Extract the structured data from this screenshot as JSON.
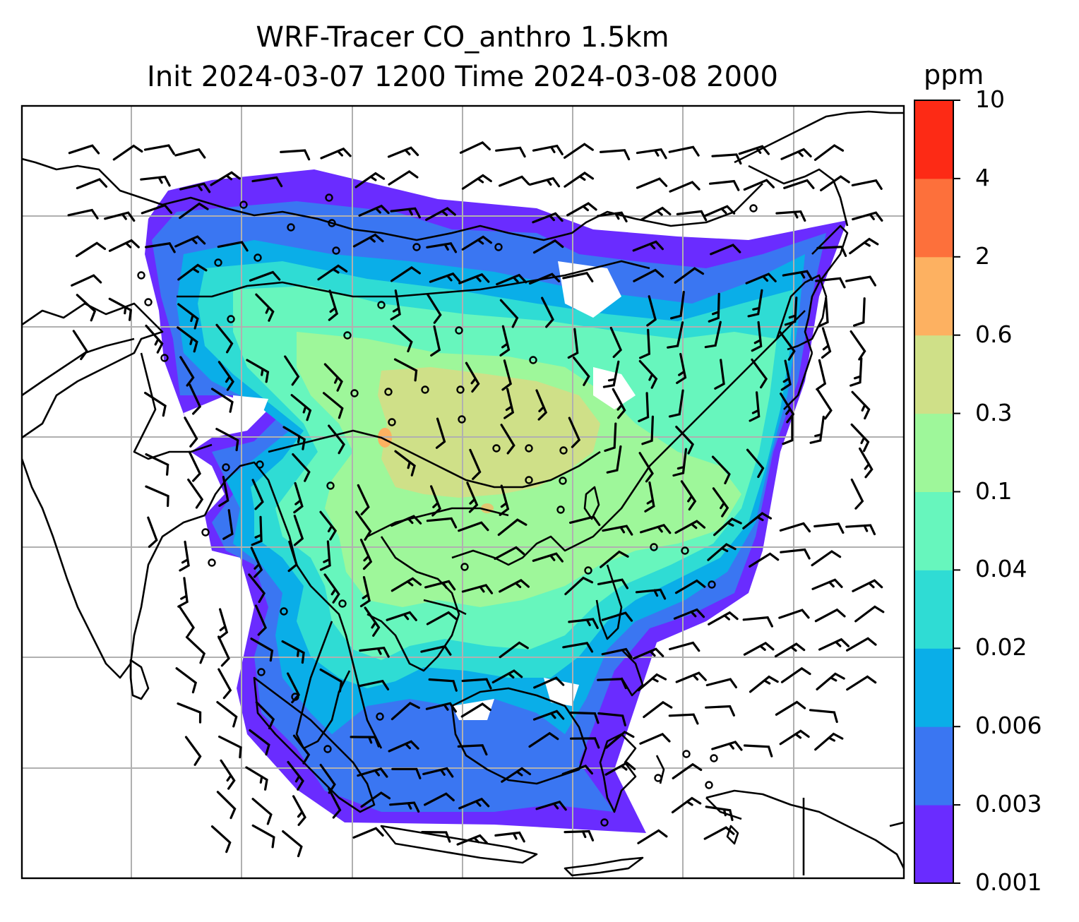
{
  "title": {
    "line1": "WRF-Tracer CO_anthro 1.5km",
    "line2": "Init 2024-03-07 1200 Time 2024-03-08 2000"
  },
  "colorbar": {
    "unit": "ppm",
    "levels": [
      "0.001",
      "0.003",
      "0.006",
      "0.02",
      "0.04",
      "0.1",
      "0.3",
      "0.6",
      "2",
      "4",
      "10"
    ],
    "colors": [
      "#6a2cff",
      "#3a76f2",
      "#0aaee8",
      "#2fdcd4",
      "#67f6bd",
      "#9ef79a",
      "#cfe088",
      "#fdb161",
      "#fd703b",
      "#fd2a15"
    ]
  },
  "map": {
    "projection": "lat-lon",
    "gridlines": true,
    "coastline_color": "#000000",
    "barb_color": "#000000",
    "grid_color": "#b0b0b0"
  }
}
